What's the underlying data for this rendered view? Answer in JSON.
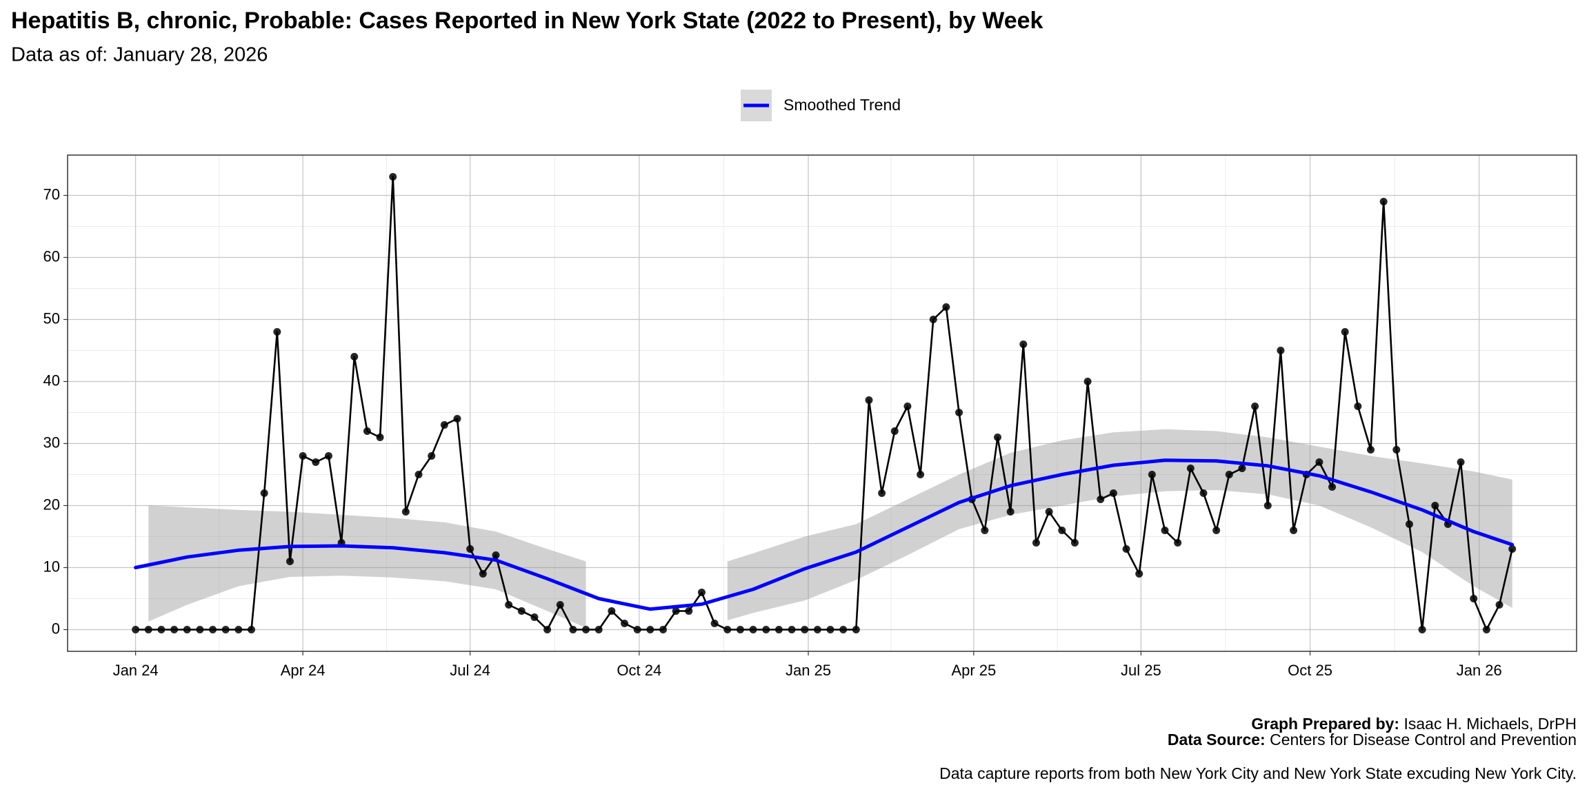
{
  "chart_data": {
    "type": "line",
    "title": "Hepatitis B, chronic, Probable: Cases Reported in New York State (2022 to Present), by Week",
    "subtitle": "Data as of: January 28, 2026",
    "caption": {
      "prepared_label": "Graph Prepared by:",
      "prepared_value": "Isaac H. Michaels, DrPH",
      "source_label": "Data Source:",
      "source_value": "Centers for Disease Control and Prevention",
      "note": "Data capture reports from both New York City and New York State excuding New York City."
    },
    "x": [
      "2024-01-01",
      "2024-01-08",
      "2024-01-15",
      "2024-01-22",
      "2024-01-29",
      "2024-02-05",
      "2024-02-12",
      "2024-02-19",
      "2024-02-26",
      "2024-03-04",
      "2024-03-11",
      "2024-03-18",
      "2024-03-25",
      "2024-04-01",
      "2024-04-08",
      "2024-04-15",
      "2024-04-22",
      "2024-04-29",
      "2024-05-06",
      "2024-05-13",
      "2024-05-20",
      "2024-05-27",
      "2024-06-03",
      "2024-06-10",
      "2024-06-17",
      "2024-06-24",
      "2024-07-01",
      "2024-07-08",
      "2024-07-15",
      "2024-07-22",
      "2024-07-29",
      "2024-08-05",
      "2024-08-12",
      "2024-08-19",
      "2024-08-26",
      "2024-09-02",
      "2024-09-09",
      "2024-09-16",
      "2024-09-23",
      "2024-09-30",
      "2024-10-07",
      "2024-10-14",
      "2024-10-21",
      "2024-10-28",
      "2024-11-04",
      "2024-11-11",
      "2024-11-18",
      "2024-11-25",
      "2024-12-02",
      "2024-12-09",
      "2024-12-16",
      "2024-12-23",
      "2024-12-30",
      "2025-01-06",
      "2025-01-13",
      "2025-01-20",
      "2025-01-27",
      "2025-02-03",
      "2025-02-10",
      "2025-02-17",
      "2025-02-24",
      "2025-03-03",
      "2025-03-10",
      "2025-03-17",
      "2025-03-24",
      "2025-03-31",
      "2025-04-07",
      "2025-04-14",
      "2025-04-21",
      "2025-04-28",
      "2025-05-05",
      "2025-05-12",
      "2025-05-19",
      "2025-05-26",
      "2025-06-02",
      "2025-06-09",
      "2025-06-16",
      "2025-06-23",
      "2025-06-30",
      "2025-07-07",
      "2025-07-14",
      "2025-07-21",
      "2025-07-28",
      "2025-08-04",
      "2025-08-11",
      "2025-08-18",
      "2025-08-25",
      "2025-09-01",
      "2025-09-08",
      "2025-09-15",
      "2025-09-22",
      "2025-09-29",
      "2025-10-06",
      "2025-10-13",
      "2025-10-20",
      "2025-10-27",
      "2025-11-03",
      "2025-11-10",
      "2025-11-17",
      "2025-11-24",
      "2025-12-01",
      "2025-12-08",
      "2025-12-15",
      "2025-12-22",
      "2025-12-29",
      "2026-01-05",
      "2026-01-12",
      "2026-01-19"
    ],
    "series": [
      {
        "color": "#000000",
        "values": [
          0,
          0,
          0,
          0,
          0,
          0,
          0,
          0,
          0,
          0,
          22,
          48,
          11,
          28,
          27,
          28,
          14,
          44,
          32,
          31,
          73,
          19,
          25,
          28,
          33,
          34,
          13,
          9,
          12,
          4,
          3,
          2,
          0,
          4,
          0,
          0,
          0,
          3,
          1,
          0,
          0,
          0,
          3,
          3,
          6,
          1,
          0,
          0,
          0,
          0,
          0,
          0,
          0,
          0,
          0,
          0,
          0,
          37,
          22,
          32,
          36,
          25,
          50,
          52,
          35,
          21,
          16,
          31,
          19,
          46,
          14,
          19,
          16,
          14,
          40,
          21,
          22,
          13,
          9,
          25,
          16,
          14,
          26,
          22,
          16,
          25,
          26,
          36,
          20,
          45,
          16,
          25,
          27,
          23,
          48,
          36,
          29,
          69,
          29,
          17,
          0,
          20,
          17,
          27,
          5,
          0,
          4,
          13
        ]
      }
    ],
    "trend": {
      "name": "Smoothed Trend",
      "color": "#0000ff",
      "x": [
        "2024-01-01",
        "2024-01-29",
        "2024-02-26",
        "2024-03-25",
        "2024-04-22",
        "2024-05-20",
        "2024-06-17",
        "2024-07-15",
        "2024-08-12",
        "2024-09-09",
        "2024-10-07",
        "2024-11-04",
        "2024-12-02",
        "2024-12-30",
        "2025-01-27",
        "2025-02-24",
        "2025-03-24",
        "2025-04-21",
        "2025-05-19",
        "2025-06-16",
        "2025-07-14",
        "2025-08-11",
        "2025-09-08",
        "2025-10-06",
        "2025-11-03",
        "2025-12-01",
        "2025-12-29",
        "2026-01-19"
      ],
      "values": [
        10,
        11.7,
        12.8,
        13.4,
        13.5,
        13.2,
        12.4,
        11.2,
        8.2,
        5,
        3.3,
        4.1,
        6.5,
        9.8,
        12.5,
        16.5,
        20.5,
        23.2,
        25,
        26.5,
        27.3,
        27.2,
        26.4,
        24.8,
        22.2,
        19.3,
        15.8,
        13.7
      ]
    },
    "band": {
      "color": "#999999",
      "x": [
        "2024-01-08",
        "2024-01-29",
        "2024-02-26",
        "2024-03-25",
        "2024-04-22",
        "2024-05-20",
        "2024-06-17",
        "2024-07-15",
        "2024-08-12",
        "2024-09-02",
        "2024-10-07",
        "2024-11-18",
        "2024-12-02",
        "2024-12-30",
        "2025-01-27",
        "2025-02-24",
        "2025-03-24",
        "2025-04-21",
        "2025-05-19",
        "2025-06-16",
        "2025-07-14",
        "2025-08-11",
        "2025-09-08",
        "2025-10-06",
        "2025-11-03",
        "2025-12-01",
        "2025-12-29",
        "2026-01-19"
      ],
      "lower": [
        1.3,
        4,
        7,
        8.5,
        8.7,
        8.4,
        7.8,
        6.5,
        3,
        0.3,
        null,
        1.5,
        2.7,
        4.7,
        8,
        12,
        16.2,
        18.5,
        20,
        21.5,
        22.3,
        22.5,
        21.8,
        20,
        16.5,
        12.5,
        7,
        3.5
      ],
      "upper": [
        20,
        19.7,
        19.3,
        19,
        18.5,
        18,
        17.3,
        15.8,
        13,
        11,
        null,
        11,
        12.3,
        15,
        17,
        21,
        25,
        28.5,
        30.5,
        31.8,
        32.3,
        32,
        31,
        29.5,
        28,
        26.8,
        25.5,
        24.2
      ]
    },
    "xlim": [
      "2023-11-25",
      "2026-02-23"
    ],
    "xticks": [
      {
        "value": "2024-01-01",
        "label": "Jan 24"
      },
      {
        "value": "2024-04-01",
        "label": "Apr 24"
      },
      {
        "value": "2024-07-01",
        "label": "Jul 24"
      },
      {
        "value": "2024-10-01",
        "label": "Oct 24"
      },
      {
        "value": "2025-01-01",
        "label": "Jan 25"
      },
      {
        "value": "2025-04-01",
        "label": "Apr 25"
      },
      {
        "value": "2025-07-01",
        "label": "Jul 25"
      },
      {
        "value": "2025-10-01",
        "label": "Oct 25"
      },
      {
        "value": "2026-01-01",
        "label": "Jan 26"
      }
    ],
    "ylim": [
      -3.5,
      76.5
    ],
    "yticks": [
      0,
      10,
      20,
      30,
      40,
      50,
      60,
      70
    ],
    "grid": true
  }
}
